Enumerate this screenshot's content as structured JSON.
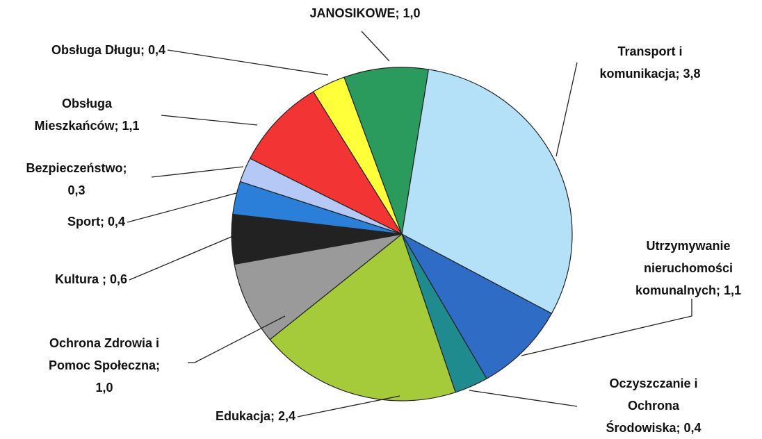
{
  "chart_data": {
    "type": "pie",
    "categories": [
      "Transport i komunikacja",
      "Utrzymywanie nieruchomości komunalnych",
      "Oczyszczanie i Ochrona Środowiska",
      "Edukacja",
      "Ochrona Zdrowia i Pomoc Społeczna",
      "Kultura",
      "Sport",
      "Bezpieczeństwo",
      "Obsługa Mieszkańców",
      "Obsługa Długu",
      "JANOSIKOWE"
    ],
    "values": [
      3.8,
      1.1,
      0.4,
      2.4,
      1.0,
      0.6,
      0.4,
      0.3,
      1.1,
      0.4,
      1.0
    ],
    "value_labels": [
      [
        "Transport i",
        "komunikacja; 3,8"
      ],
      [
        "Utrzymywanie",
        "nieruchomości",
        "komunalnych; 1,1"
      ],
      [
        "Oczyszczanie i",
        "Ochrona",
        "Środowiska; 0,4"
      ],
      [
        "Edukacja; 2,4"
      ],
      [
        "Ochrona Zdrowia i",
        "Pomoc Społeczna;",
        "1,0"
      ],
      [
        "Kultura ; 0,6"
      ],
      [
        "Sport; 0,4"
      ],
      [
        "Bezpieczeństwo;",
        "0,3"
      ],
      [
        "Obsługa",
        "Mieszkańców; 1,1"
      ],
      [
        "Obsługa Długu; 0,4"
      ],
      [
        "JANOSIKOWE; 1,0"
      ]
    ],
    "colors": [
      "#b4e1f8",
      "#2e6cc6",
      "#1f8b8e",
      "#a6cb3a",
      "#9a9a9a",
      "#222222",
      "#2b7fd8",
      "#b6c9f6",
      "#f23434",
      "#ffff3a",
      "#2a9b5c"
    ]
  }
}
